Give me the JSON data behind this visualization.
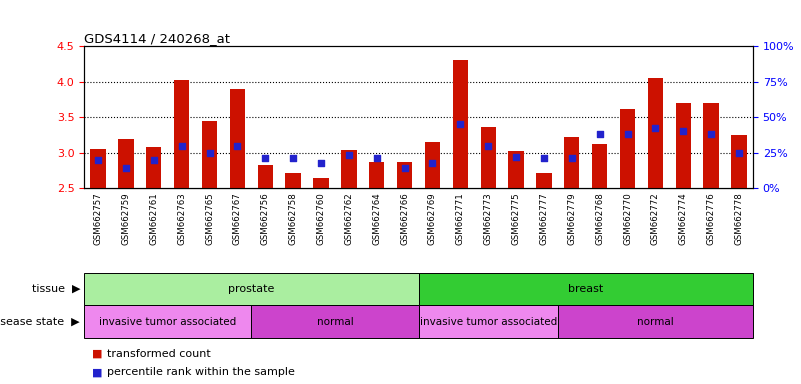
{
  "title": "GDS4114 / 240268_at",
  "samples": [
    "GSM662757",
    "GSM662759",
    "GSM662761",
    "GSM662763",
    "GSM662765",
    "GSM662767",
    "GSM662756",
    "GSM662758",
    "GSM662760",
    "GSM662762",
    "GSM662764",
    "GSM662766",
    "GSM662769",
    "GSM662771",
    "GSM662773",
    "GSM662775",
    "GSM662777",
    "GSM662779",
    "GSM662768",
    "GSM662770",
    "GSM662772",
    "GSM662774",
    "GSM662776",
    "GSM662778"
  ],
  "transformed_count": [
    3.05,
    3.19,
    3.08,
    4.02,
    3.45,
    3.9,
    2.82,
    2.72,
    2.65,
    3.04,
    2.87,
    2.87,
    3.15,
    4.3,
    3.36,
    3.02,
    2.72,
    3.22,
    3.12,
    3.62,
    4.05,
    3.7,
    3.7,
    3.25
  ],
  "percentile_rank": [
    20,
    14,
    20,
    30,
    25,
    30,
    21,
    21,
    18,
    23,
    21,
    14,
    18,
    45,
    30,
    22,
    21,
    21,
    38,
    38,
    42,
    40,
    38,
    25
  ],
  "bar_color": "#cc1100",
  "dot_color": "#2222cc",
  "ylim_left": [
    2.5,
    4.5
  ],
  "ylim_right": [
    0,
    100
  ],
  "yticks_left": [
    2.5,
    3.0,
    3.5,
    4.0,
    4.5
  ],
  "yticks_right": [
    0,
    25,
    50,
    75,
    100
  ],
  "grid_lines": [
    3.0,
    3.5,
    4.0
  ],
  "tissue_groups": [
    {
      "label": "prostate",
      "start": 0,
      "end": 12,
      "color": "#aaeea0"
    },
    {
      "label": "breast",
      "start": 12,
      "end": 24,
      "color": "#33cc33"
    }
  ],
  "disease_groups": [
    {
      "label": "invasive tumor associated",
      "start": 0,
      "end": 6,
      "color": "#ee88ee"
    },
    {
      "label": "normal",
      "start": 6,
      "end": 12,
      "color": "#cc44cc"
    },
    {
      "label": "invasive tumor associated",
      "start": 12,
      "end": 17,
      "color": "#ee88ee"
    },
    {
      "label": "normal",
      "start": 17,
      "end": 24,
      "color": "#cc44cc"
    }
  ],
  "legend_red_label": "transformed count",
  "legend_blue_label": "percentile rank within the sample",
  "bar_width": 0.55
}
